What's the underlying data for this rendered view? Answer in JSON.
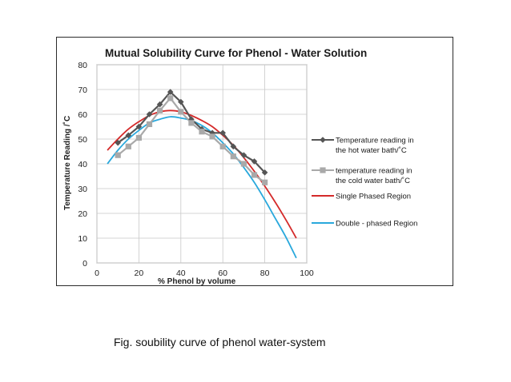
{
  "caption": "Fig. soubility curve of phenol water-system",
  "chart_data": {
    "type": "line",
    "title": "Mutual Solubility Curve for Phenol - Water Solution",
    "xlabel": "% Phenol by volume",
    "ylabel": "Temperature Reading /˚C",
    "xlim": [
      0,
      100
    ],
    "ylim": [
      0,
      80
    ],
    "xticks": [
      0,
      20,
      40,
      60,
      80,
      100
    ],
    "yticks": [
      0,
      10,
      20,
      30,
      40,
      50,
      60,
      70,
      80
    ],
    "grid": true,
    "legend_position": "right",
    "series": [
      {
        "name": "Temperature reading in the hot water bath/˚C",
        "legend_lines": [
          "Temperature reading in",
          "the hot water bath/˚C"
        ],
        "color": "#555555",
        "marker": "diamond",
        "x": [
          10,
          15,
          20,
          25,
          30,
          35,
          40,
          45,
          50,
          55,
          60,
          65,
          70,
          75,
          80
        ],
        "y": [
          48.5,
          51.5,
          55,
          60,
          64,
          69,
          65,
          58,
          54,
          52.5,
          52.5,
          47,
          43.5,
          41,
          36.5
        ]
      },
      {
        "name": "temperature reading in the cold water bath/˚C",
        "legend_lines": [
          "temperature reading in",
          "the cold water bath/˚C"
        ],
        "color": "#a9a9a9",
        "marker": "square",
        "x": [
          10,
          15,
          20,
          25,
          30,
          35,
          40,
          45,
          50,
          55,
          60,
          65,
          70,
          75,
          80
        ],
        "y": [
          43.5,
          47,
          50.5,
          56,
          61.5,
          66.5,
          61,
          56.5,
          53,
          51,
          47,
          43,
          40,
          35.5,
          32.5
        ]
      },
      {
        "name": "Single Phased Region",
        "legend_lines": [
          "Single Phased Region"
        ],
        "color": "#d42a2a",
        "marker": "none",
        "x": [
          5,
          10,
          15,
          20,
          25,
          30,
          35,
          40,
          45,
          50,
          55,
          60,
          65,
          70,
          75,
          80,
          85,
          90,
          95
        ],
        "y": [
          45.5,
          50,
          54,
          57,
          59.5,
          61,
          61.5,
          61,
          59.5,
          57.5,
          55,
          51.5,
          47.5,
          42.5,
          37,
          31,
          24.5,
          17.5,
          10
        ]
      },
      {
        "name": "Double - phased Region",
        "legend_lines": [
          "Double - phased Region"
        ],
        "color": "#29a8dc",
        "marker": "none",
        "x": [
          5,
          10,
          15,
          20,
          25,
          30,
          35,
          40,
          45,
          50,
          55,
          60,
          65,
          70,
          75,
          80,
          85,
          90,
          95
        ],
        "y": [
          40,
          45.5,
          50,
          53.5,
          56.5,
          58,
          59,
          58.5,
          57.5,
          55.5,
          52.5,
          48.5,
          44,
          38.5,
          32.5,
          25.5,
          18,
          10.5,
          2
        ]
      }
    ]
  }
}
